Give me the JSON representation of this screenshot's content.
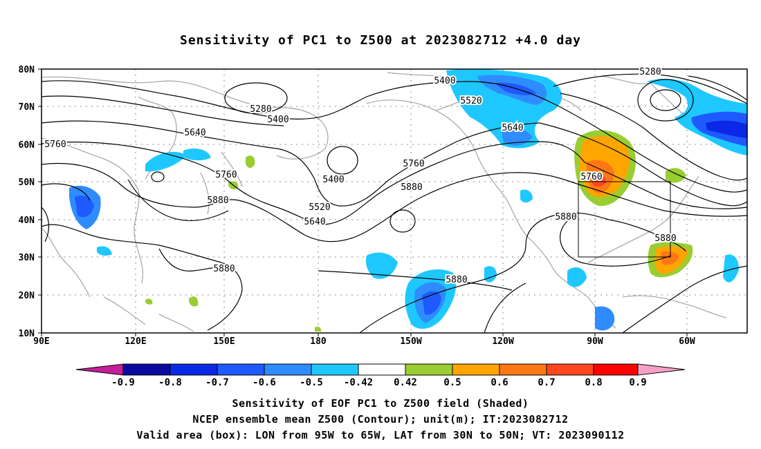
{
  "title": "Sensitivity of PC1 to Z500 at 2023082712 +4.0 day",
  "map": {
    "x_ticks": [
      "90E",
      "120E",
      "150E",
      "180",
      "150W",
      "120W",
      "90W",
      "60W"
    ],
    "y_ticks": [
      "80N",
      "70N",
      "60N",
      "50N",
      "40N",
      "30N",
      "20N",
      "10N"
    ],
    "contour_labels": [
      "5280",
      "5400",
      "5280",
      "5400",
      "5520",
      "5640",
      "5640",
      "5760",
      "5760",
      "5400",
      "5520",
      "5640",
      "5760",
      "5880",
      "5880",
      "5880",
      "5760",
      "5880",
      "5880",
      "5880"
    ],
    "valid_box": {
      "lon_min": -95,
      "lon_max": -65,
      "lat_min": 30,
      "lat_max": 50
    }
  },
  "colorbar": {
    "ticks": [
      "-0.9",
      "-0.8",
      "-0.7",
      "-0.6",
      "-0.5",
      "-0.42",
      "0.42",
      "0.5",
      "0.6",
      "0.7",
      "0.8",
      "0.9"
    ],
    "colors": [
      "#c51e9a",
      "#0a0aa0",
      "#0a28e6",
      "#1e5aff",
      "#2f8cff",
      "#1ec8ff",
      "#ffffff",
      "#9acd32",
      "#ffa500",
      "#ff7814",
      "#ff461e",
      "#ff0000",
      "#f5a0c8"
    ]
  },
  "captions": {
    "line1": "Sensitivity of EOF PC1 to Z500 field (Shaded)",
    "line2": "NCEP ensemble mean Z500 (Contour); unit(m); IT:2023082712",
    "line3": "Valid area (box): LON from 95W to 65W, LAT from 30N to 50N; VT: 2023090112"
  }
}
